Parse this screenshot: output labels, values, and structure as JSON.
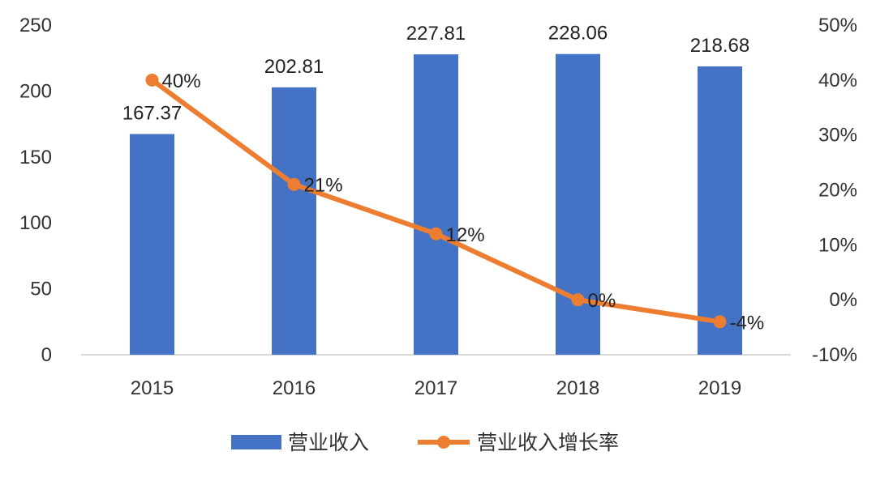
{
  "chart_data": {
    "type": "bar",
    "categories": [
      "2015",
      "2016",
      "2017",
      "2018",
      "2019"
    ],
    "series": [
      {
        "name": "营业收入",
        "type": "bar",
        "axis": "left",
        "color": "#4472C4",
        "values": [
          167.37,
          202.81,
          227.81,
          228.06,
          218.68
        ],
        "labels": [
          "167.37",
          "202.81",
          "227.81",
          "228.06",
          "218.68"
        ]
      },
      {
        "name": "营业收入增长率",
        "type": "line",
        "axis": "right",
        "color": "#ED7D31",
        "values": [
          0.4,
          0.21,
          0.12,
          0.0,
          -0.04
        ],
        "labels": [
          "40%",
          "21%",
          "12%",
          "0%",
          "-4%"
        ]
      }
    ],
    "y_left": {
      "ylim": [
        0,
        250
      ],
      "ticks": [
        "0",
        "50",
        "100",
        "150",
        "200",
        "250"
      ]
    },
    "y_right": {
      "ylim": [
        -0.1,
        0.5
      ],
      "ticks": [
        "-10%",
        "0%",
        "10%",
        "20%",
        "30%",
        "40%",
        "50%"
      ]
    },
    "legend": "bottom",
    "grid": false
  }
}
